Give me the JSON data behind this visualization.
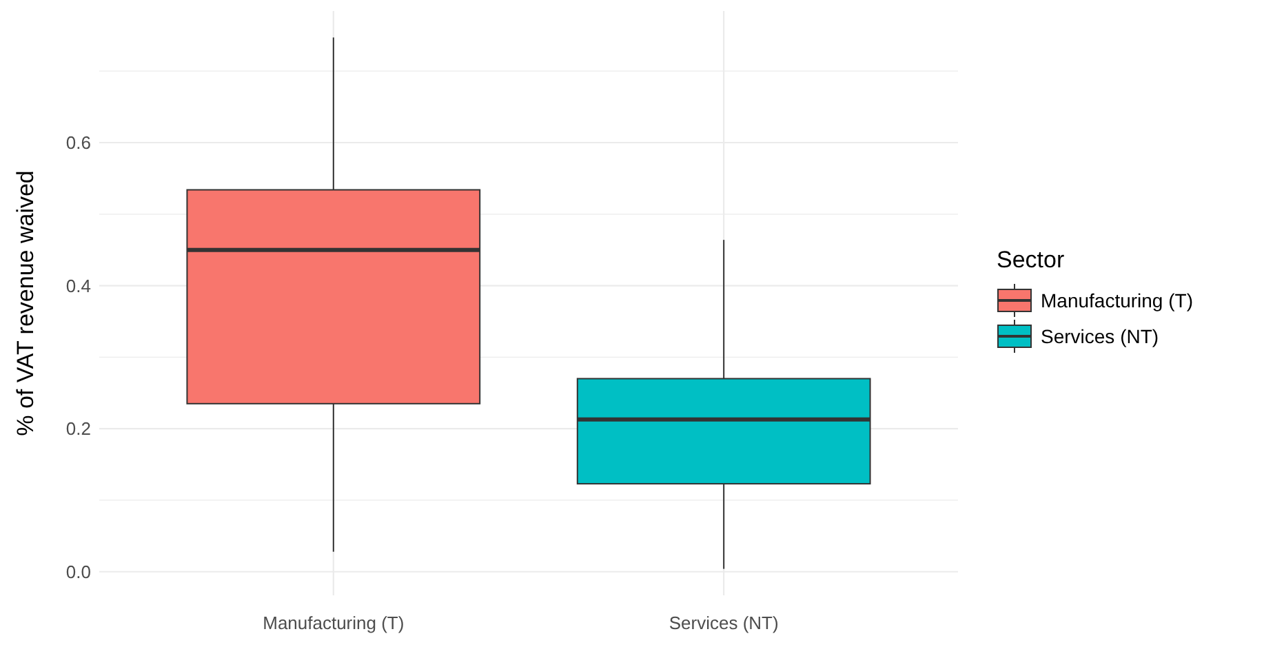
{
  "chart_data": {
    "type": "box",
    "ylabel": "% of VAT revenue waived",
    "legend_title": "Sector",
    "categories": [
      "Manufacturing (T)",
      "Services (NT)"
    ],
    "series": [
      {
        "name": "Manufacturing (T)",
        "color": "#f8766d",
        "boxes": [
          {
            "low": 0.028,
            "q1": 0.235,
            "median": 0.45,
            "q3": 0.534,
            "high": 0.747
          },
          null
        ]
      },
      {
        "name": "Services (NT)",
        "color": "#00bfc4",
        "boxes": [
          null,
          {
            "low": 0.004,
            "q1": 0.123,
            "median": 0.213,
            "q3": 0.27,
            "high": 0.464
          }
        ]
      }
    ],
    "ylim": [
      -0.033,
      0.784
    ],
    "yticks": [
      {
        "value": 0,
        "label": "0.0"
      },
      {
        "value": 0.1,
        "label": null
      },
      {
        "value": 0.2,
        "label": "0.2"
      },
      {
        "value": 0.3,
        "label": null
      },
      {
        "value": 0.4,
        "label": "0.4"
      },
      {
        "value": 0.5,
        "label": null
      },
      {
        "value": 0.6,
        "label": "0.6"
      },
      {
        "value": 0.7,
        "label": null
      }
    ],
    "grid": true,
    "legend": "right"
  }
}
